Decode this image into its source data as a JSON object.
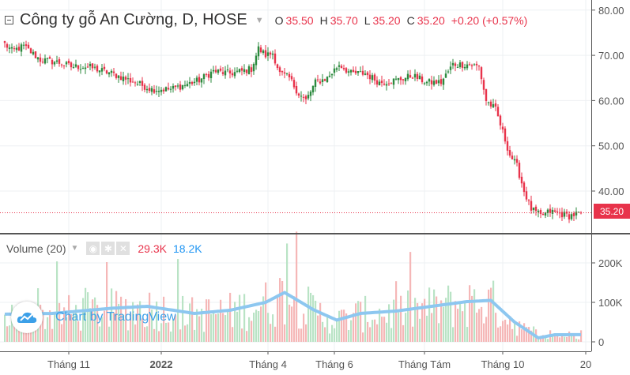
{
  "header": {
    "title": "Công ty gỗ An Cường, D, HOSE",
    "ohlc": [
      {
        "label": "O",
        "value": "35.50"
      },
      {
        "label": "H",
        "value": "35.70"
      },
      {
        "label": "L",
        "value": "35.20"
      },
      {
        "label": "C",
        "value": "35.20"
      }
    ],
    "change": "+0.20 (+0.57%)"
  },
  "volume_pane": {
    "title": "Volume (20)",
    "volume_value": "29.3K",
    "ma_value": "18.2K"
  },
  "watermark": {
    "text": "Chart by TradingView"
  },
  "last_price_label": "35.20",
  "colors": {
    "up": "#26a69a",
    "down": "#ef5350",
    "candle_up": "#2b8a3e",
    "candle_down": "#e8334b",
    "vol_up": "#b9e3c5",
    "vol_down": "#f5b7b7",
    "vol_ma": "#8dc7f0",
    "accent": "#e8334b",
    "blue": "#2196f3"
  },
  "chart_data": [
    {
      "type": "candlestick",
      "title": "Công ty gỗ An Cường, D, HOSE",
      "y_ticks": [
        40,
        50,
        60,
        70,
        80
      ],
      "y_tick_labels": [
        "40.00",
        "50.00",
        "60.00",
        "70.00",
        "80.00"
      ],
      "ylim": [
        30,
        82
      ],
      "x_tick_labels": [
        "Tháng 11",
        "2022",
        "Tháng 4",
        "Tháng 6",
        "Tháng Tám",
        "Tháng 10",
        "20"
      ],
      "x_tick_index": [
        27,
        66,
        111,
        139,
        177,
        210,
        245
      ],
      "last_price": 35.2,
      "grid": true,
      "key_points": [
        {
          "i": 0,
          "v": 72.5
        },
        {
          "i": 3,
          "v": 71
        },
        {
          "i": 8,
          "v": 72
        },
        {
          "i": 15,
          "v": 69
        },
        {
          "i": 22,
          "v": 68.5
        },
        {
          "i": 28,
          "v": 67.5
        },
        {
          "i": 35,
          "v": 67.5
        },
        {
          "i": 45,
          "v": 66
        },
        {
          "i": 55,
          "v": 64
        },
        {
          "i": 62,
          "v": 62.5
        },
        {
          "i": 70,
          "v": 62.5
        },
        {
          "i": 76,
          "v": 63.5
        },
        {
          "i": 82,
          "v": 64.5
        },
        {
          "i": 88,
          "v": 66.5
        },
        {
          "i": 95,
          "v": 66
        },
        {
          "i": 100,
          "v": 66.5
        },
        {
          "i": 104,
          "v": 67
        },
        {
          "i": 107,
          "v": 71.5
        },
        {
          "i": 110,
          "v": 70
        },
        {
          "i": 113,
          "v": 70.5
        },
        {
          "i": 116,
          "v": 66
        },
        {
          "i": 120,
          "v": 65
        },
        {
          "i": 124,
          "v": 61.5
        },
        {
          "i": 127,
          "v": 60
        },
        {
          "i": 131,
          "v": 64
        },
        {
          "i": 136,
          "v": 65
        },
        {
          "i": 141,
          "v": 68
        },
        {
          "i": 146,
          "v": 66
        },
        {
          "i": 152,
          "v": 66
        },
        {
          "i": 158,
          "v": 64
        },
        {
          "i": 165,
          "v": 64.5
        },
        {
          "i": 172,
          "v": 65.5
        },
        {
          "i": 178,
          "v": 64
        },
        {
          "i": 184,
          "v": 64
        },
        {
          "i": 189,
          "v": 68
        },
        {
          "i": 195,
          "v": 68
        },
        {
          "i": 200,
          "v": 67.5
        },
        {
          "i": 203,
          "v": 60
        },
        {
          "i": 207,
          "v": 58
        },
        {
          "i": 210,
          "v": 53
        },
        {
          "i": 213,
          "v": 48
        },
        {
          "i": 216,
          "v": 45.5
        },
        {
          "i": 219,
          "v": 40
        },
        {
          "i": 222,
          "v": 36
        },
        {
          "i": 226,
          "v": 34.5
        },
        {
          "i": 230,
          "v": 35.5
        },
        {
          "i": 234,
          "v": 35
        },
        {
          "i": 238,
          "v": 34.5
        },
        {
          "i": 243,
          "v": 35.2
        }
      ],
      "n_candles": 244
    },
    {
      "type": "bar",
      "title": "Volume (20)",
      "y_ticks": [
        0,
        100000,
        200000
      ],
      "y_tick_labels": [
        "0",
        "100K",
        "200K"
      ],
      "ylim": [
        0,
        280000
      ],
      "ma_key_points": [
        {
          "i": 0,
          "v": 70000
        },
        {
          "i": 20,
          "v": 72000
        },
        {
          "i": 45,
          "v": 85000
        },
        {
          "i": 60,
          "v": 90000
        },
        {
          "i": 80,
          "v": 72000
        },
        {
          "i": 95,
          "v": 80000
        },
        {
          "i": 110,
          "v": 100000
        },
        {
          "i": 118,
          "v": 125000
        },
        {
          "i": 130,
          "v": 82000
        },
        {
          "i": 140,
          "v": 55000
        },
        {
          "i": 150,
          "v": 72000
        },
        {
          "i": 165,
          "v": 78000
        },
        {
          "i": 180,
          "v": 90000
        },
        {
          "i": 195,
          "v": 102000
        },
        {
          "i": 205,
          "v": 105000
        },
        {
          "i": 215,
          "v": 50000
        },
        {
          "i": 225,
          "v": 10000
        },
        {
          "i": 232,
          "v": 18000
        },
        {
          "i": 243,
          "v": 18200
        }
      ],
      "last_volume": 29300,
      "last_ma": 18200
    }
  ]
}
